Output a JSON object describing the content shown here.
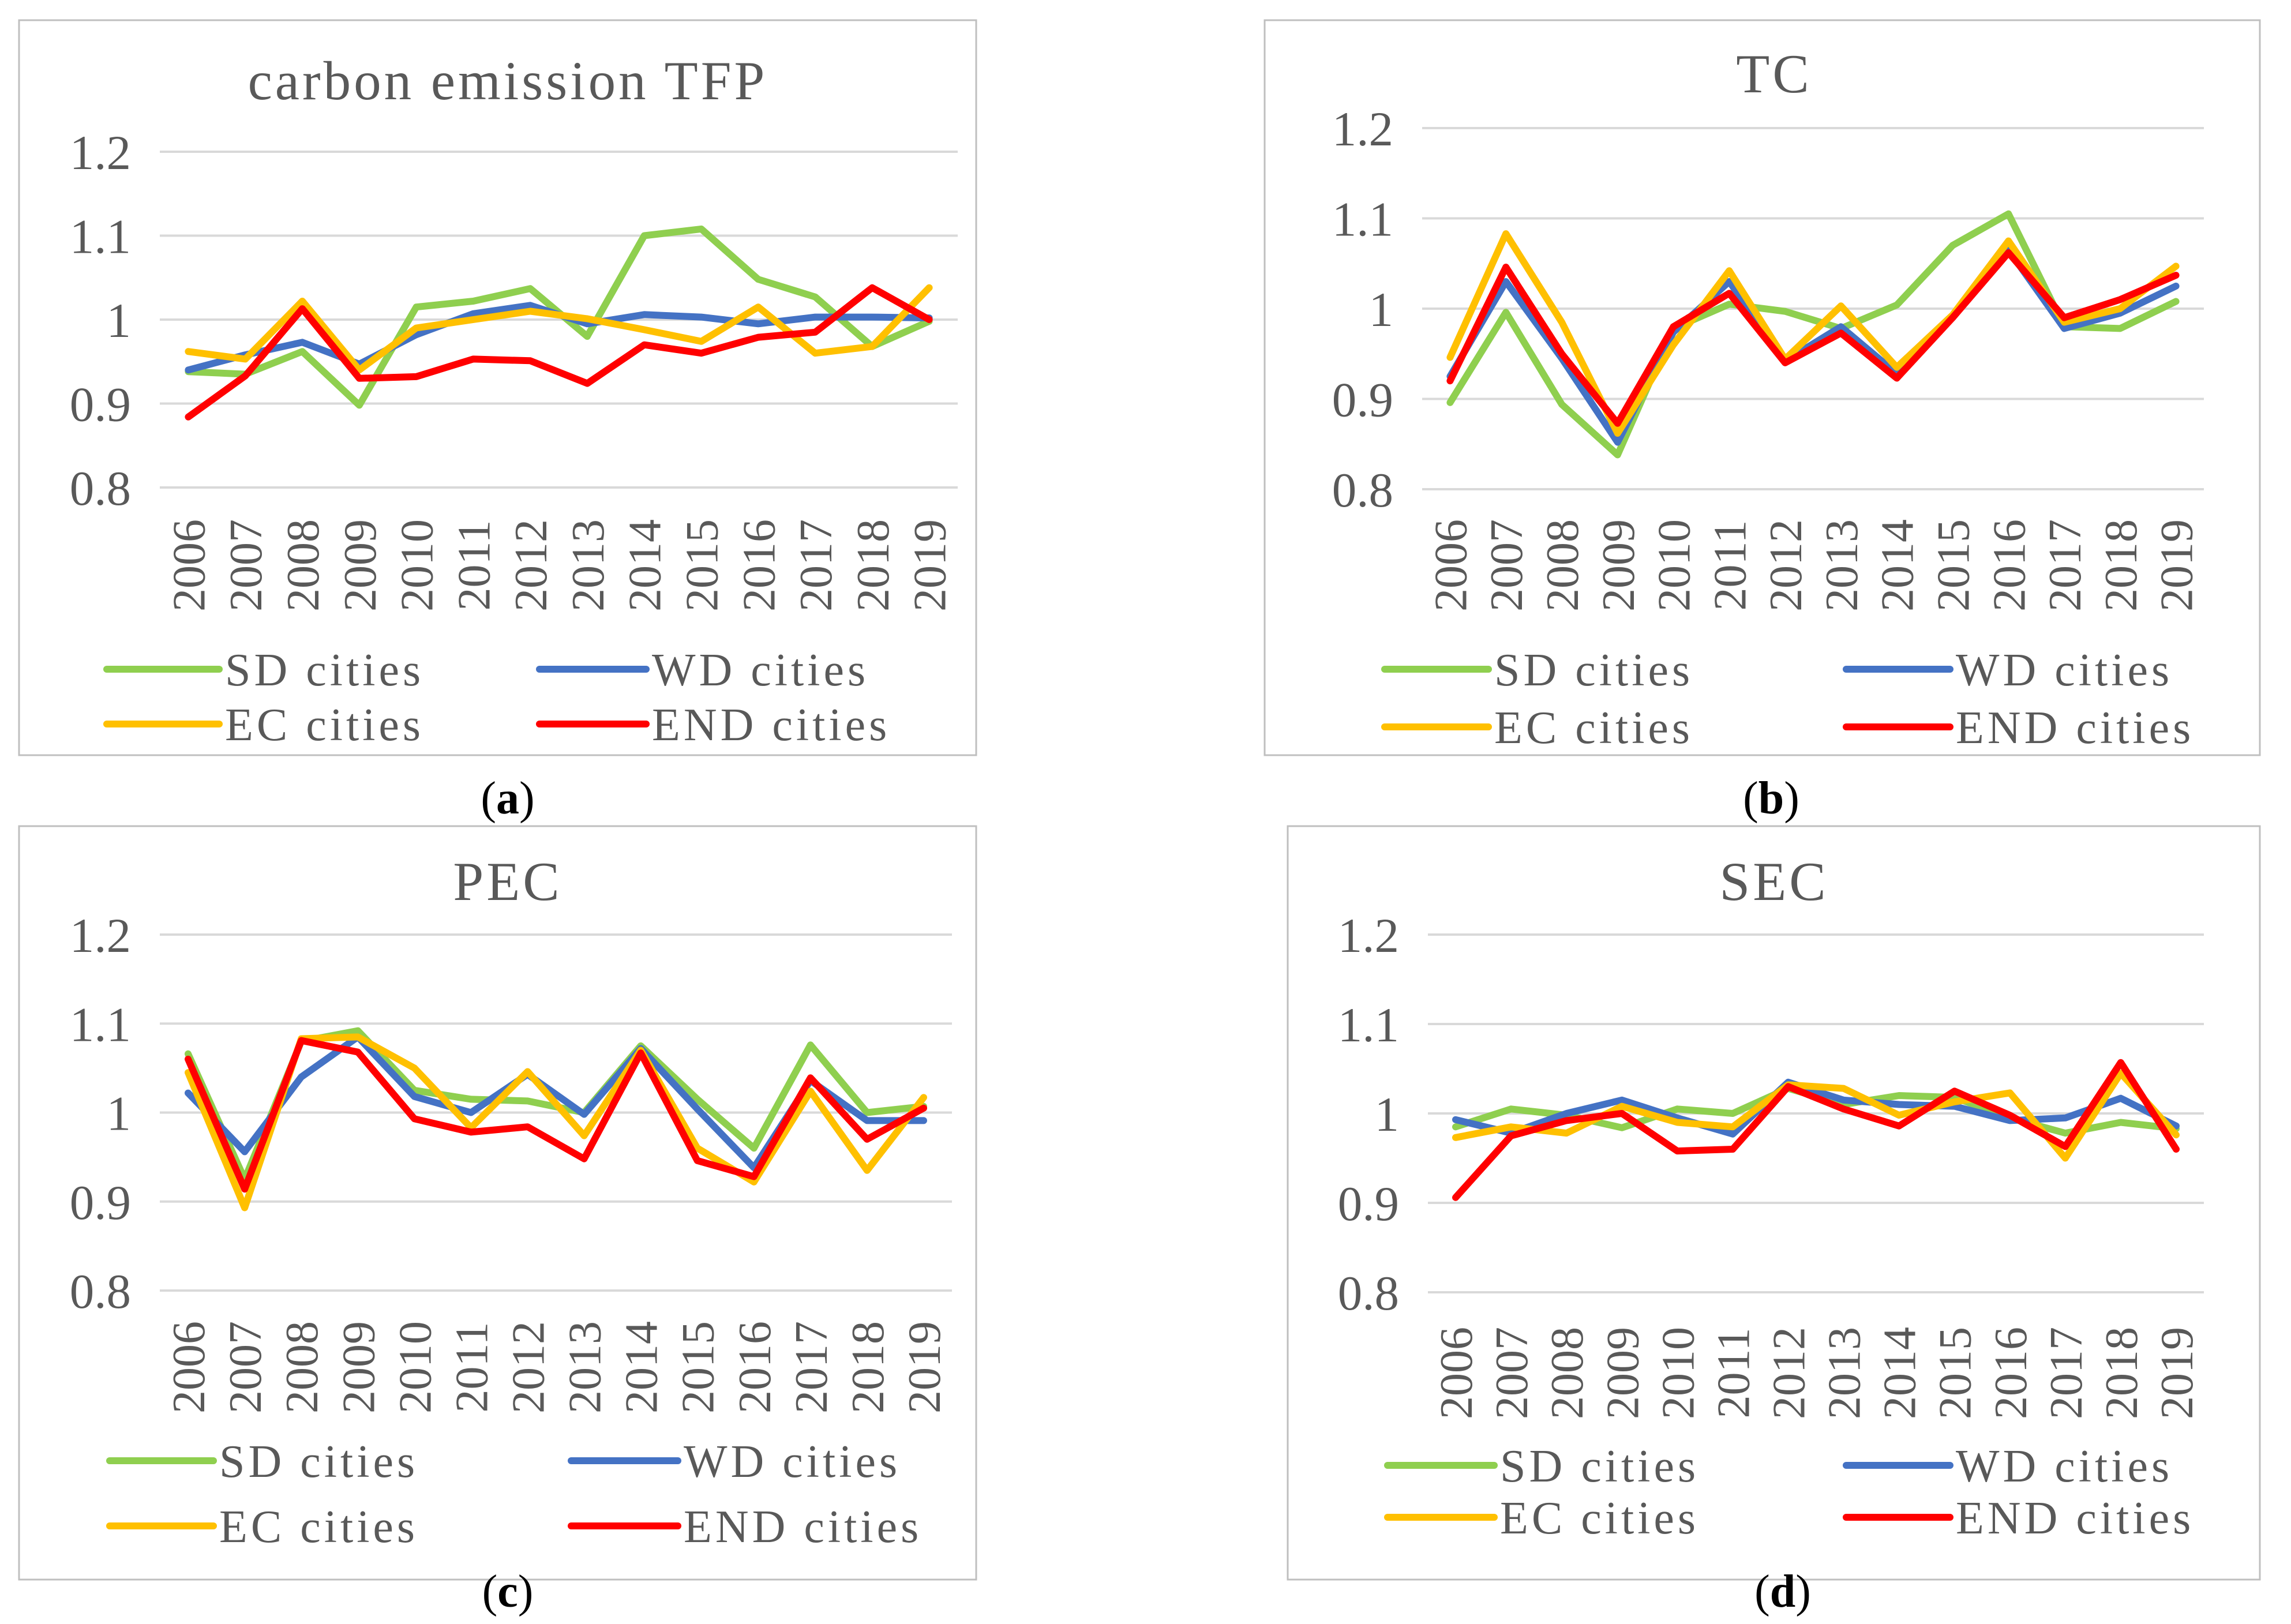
{
  "colors": {
    "SD cities": "#8fcf4f",
    "WD cities": "#4472c4",
    "EC cities": "#ffc000",
    "END cities": "#ff0000",
    "grid": "#d9d9d9",
    "frame": "#bfbfbf",
    "text": "#595959"
  },
  "chart_data": [
    {
      "type": "line",
      "title": "carbon emission TFP",
      "caption": "(a)",
      "x": [
        "2006",
        "2007",
        "2008",
        "2009",
        "2010",
        "2011",
        "2012",
        "2013",
        "2014",
        "2015",
        "2016",
        "2017",
        "2018",
        "2019"
      ],
      "ylim": [
        0.8,
        1.2
      ],
      "yticks": [
        "0.8",
        "0.9",
        "1",
        "1.1",
        "1.2"
      ],
      "grid": true,
      "legend": "bottom",
      "series": [
        {
          "name": "SD cities",
          "values": [
            0.938,
            0.935,
            0.962,
            0.898,
            1.015,
            1.022,
            1.037,
            0.98,
            1.1,
            1.108,
            1.048,
            1.027,
            0.968,
            0.998
          ]
        },
        {
          "name": "WD cities",
          "values": [
            0.94,
            0.958,
            0.973,
            0.947,
            0.982,
            1.007,
            1.017,
            0.995,
            1.006,
            1.003,
            0.995,
            1.003,
            1.003,
            1.002
          ]
        },
        {
          "name": "EC cities",
          "values": [
            0.962,
            0.953,
            1.022,
            0.94,
            0.99,
            1.0,
            1.01,
            1.001,
            0.988,
            0.974,
            1.015,
            0.96,
            0.968,
            1.038
          ]
        },
        {
          "name": "END cities",
          "values": [
            0.884,
            0.933,
            1.013,
            0.93,
            0.932,
            0.953,
            0.951,
            0.924,
            0.97,
            0.96,
            0.979,
            0.985,
            1.038,
            1.0
          ]
        }
      ]
    },
    {
      "type": "line",
      "title": "TC",
      "caption": "(b)",
      "x": [
        "2006",
        "2007",
        "2008",
        "2009",
        "2010",
        "2011",
        "2012",
        "2013",
        "2014",
        "2015",
        "2016",
        "2017",
        "2018",
        "2019"
      ],
      "ylim": [
        0.8,
        1.2
      ],
      "yticks": [
        "0.8",
        "0.9",
        "1",
        "1.1",
        "1.2"
      ],
      "grid": true,
      "legend": "bottom",
      "series": [
        {
          "name": "SD cities",
          "values": [
            0.896,
            0.996,
            0.894,
            0.838,
            0.978,
            1.005,
            0.997,
            0.978,
            1.004,
            1.07,
            1.105,
            0.98,
            0.978,
            1.008
          ]
        },
        {
          "name": "WD cities",
          "values": [
            0.925,
            1.03,
            0.945,
            0.852,
            0.974,
            1.03,
            0.942,
            0.98,
            0.928,
            0.99,
            1.065,
            0.978,
            0.995,
            1.025
          ]
        },
        {
          "name": "EC cities",
          "values": [
            0.946,
            1.083,
            0.985,
            0.862,
            0.96,
            1.042,
            0.944,
            1.003,
            0.935,
            0.993,
            1.075,
            0.985,
            1.0,
            1.047
          ]
        },
        {
          "name": "END cities",
          "values": [
            0.92,
            1.046,
            0.95,
            0.873,
            0.98,
            1.017,
            0.94,
            0.973,
            0.923,
            0.99,
            1.062,
            0.99,
            1.01,
            1.037
          ]
        }
      ]
    },
    {
      "type": "line",
      "title": "PEC",
      "caption": "(c)",
      "x": [
        "2006",
        "2007",
        "2008",
        "2009",
        "2010",
        "2011",
        "2012",
        "2013",
        "2014",
        "2015",
        "2016",
        "2017",
        "2018",
        "2019"
      ],
      "ylim": [
        0.8,
        1.2
      ],
      "yticks": [
        "0.8",
        "0.9",
        "1",
        "1.1",
        "1.2"
      ],
      "grid": true,
      "legend": "bottom",
      "series": [
        {
          "name": "SD cities",
          "values": [
            1.066,
            0.925,
            1.08,
            1.092,
            1.025,
            1.015,
            1.013,
            1.0,
            1.075,
            1.015,
            0.96,
            1.076,
            1.0,
            1.007
          ]
        },
        {
          "name": "WD cities",
          "values": [
            1.022,
            0.956,
            1.04,
            1.085,
            1.018,
            1.0,
            1.043,
            0.998,
            1.072,
            1.004,
            0.938,
            1.036,
            0.991,
            0.991
          ]
        },
        {
          "name": "EC cities",
          "values": [
            1.045,
            0.893,
            1.083,
            1.085,
            1.05,
            0.983,
            1.046,
            0.974,
            1.07,
            0.96,
            0.922,
            1.024,
            0.935,
            1.017
          ]
        },
        {
          "name": "END cities",
          "values": [
            1.06,
            0.914,
            1.081,
            1.068,
            0.993,
            0.978,
            0.984,
            0.948,
            1.067,
            0.946,
            0.928,
            1.039,
            0.97,
            1.005
          ]
        }
      ]
    },
    {
      "type": "line",
      "title": "SEC",
      "caption": "(d)",
      "x": [
        "2006",
        "2007",
        "2008",
        "2009",
        "2010",
        "2011",
        "2012",
        "2013",
        "2014",
        "2015",
        "2016",
        "2017",
        "2018",
        "2019"
      ],
      "ylim": [
        0.8,
        1.2
      ],
      "yticks": [
        "0.8",
        "0.9",
        "1",
        "1.1",
        "1.2"
      ],
      "grid": true,
      "legend": "bottom",
      "series": [
        {
          "name": "SD cities",
          "values": [
            0.985,
            1.005,
            0.998,
            0.984,
            1.005,
            1.0,
            1.028,
            1.01,
            1.02,
            1.018,
            0.995,
            0.978,
            0.99,
            0.983
          ]
        },
        {
          "name": "WD cities",
          "values": [
            0.993,
            0.978,
            1.0,
            1.015,
            0.995,
            0.977,
            1.035,
            1.015,
            1.01,
            1.008,
            0.992,
            0.995,
            1.017,
            0.986
          ]
        },
        {
          "name": "EC cities",
          "values": [
            0.973,
            0.985,
            0.978,
            1.008,
            0.99,
            0.985,
            1.032,
            1.028,
            0.998,
            1.013,
            1.023,
            0.95,
            1.045,
            0.976
          ]
        },
        {
          "name": "END cities",
          "values": [
            0.906,
            0.975,
            0.992,
            1.0,
            0.958,
            0.96,
            1.03,
            1.005,
            0.986,
            1.025,
            0.998,
            0.963,
            1.057,
            0.96
          ]
        }
      ]
    }
  ]
}
